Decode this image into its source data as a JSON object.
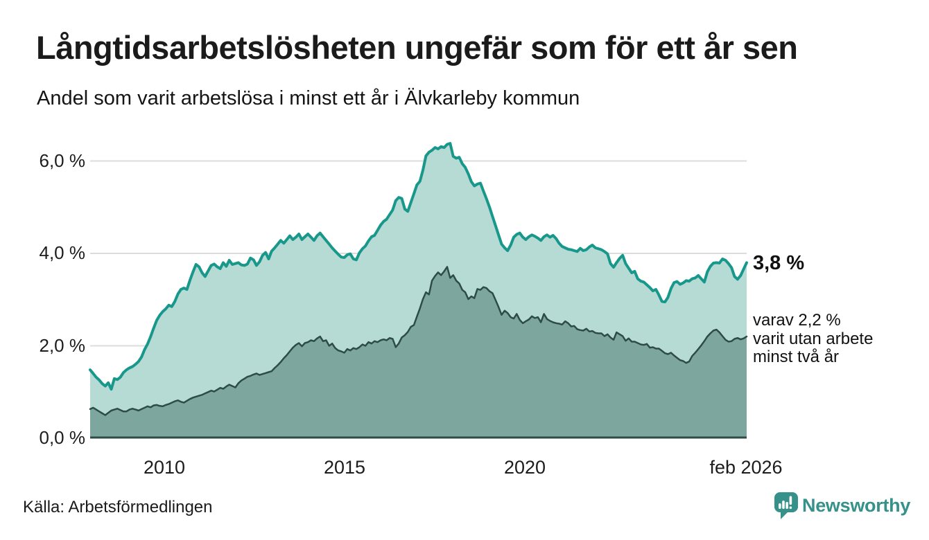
{
  "header": {
    "title": "Långtidsarbetslösheten ungefär som för ett år sen",
    "subtitle": "Andel som varit arbetslösa i minst ett år i Älvkarleby kommun"
  },
  "chart_data": {
    "type": "area",
    "title": "Andel som varit arbetslösa i minst ett år i Älvkarleby kommun",
    "unit": "%",
    "x_start": "2008-01",
    "x_end": "2026-02",
    "grid": true,
    "ylim": [
      0,
      6.6
    ],
    "y_tick_labels": {
      "t0": "0,0 %",
      "t2": "2,0 %",
      "t4": "4,0 %",
      "t6": "6,0 %"
    },
    "y_tick_values": [
      0,
      2,
      4,
      6
    ],
    "x_tick_labels": {
      "y2010": "2010",
      "y2015": "2015",
      "y2020": "2020",
      "y2026": "feb 2026"
    },
    "series": [
      {
        "name": "arbetslösa minst ett år",
        "line_color": "#18988b",
        "fill_color": "#b6dad4",
        "line_width": 4,
        "values": [
          1.48,
          1.4,
          1.32,
          1.26,
          1.18,
          1.13,
          1.2,
          1.06,
          1.29,
          1.27,
          1.32,
          1.42,
          1.48,
          1.52,
          1.55,
          1.6,
          1.66,
          1.76,
          1.92,
          2.04,
          2.2,
          2.38,
          2.55,
          2.66,
          2.74,
          2.8,
          2.88,
          2.85,
          2.96,
          3.12,
          3.22,
          3.25,
          3.22,
          3.42,
          3.6,
          3.76,
          3.71,
          3.58,
          3.5,
          3.62,
          3.74,
          3.77,
          3.71,
          3.67,
          3.8,
          3.72,
          3.85,
          3.76,
          3.78,
          3.8,
          3.75,
          3.74,
          3.77,
          3.9,
          3.86,
          3.74,
          3.82,
          3.96,
          4.02,
          3.88,
          4.05,
          4.12,
          4.2,
          4.28,
          4.22,
          4.3,
          4.38,
          4.3,
          4.35,
          4.42,
          4.3,
          4.36,
          4.42,
          4.35,
          4.28,
          4.38,
          4.44,
          4.36,
          4.28,
          4.2,
          4.12,
          4.05,
          3.98,
          3.92,
          3.91,
          3.97,
          3.99,
          3.88,
          3.86,
          4.01,
          4.1,
          4.16,
          4.27,
          4.36,
          4.39,
          4.5,
          4.61,
          4.69,
          4.74,
          4.84,
          4.94,
          5.14,
          5.21,
          5.19,
          4.96,
          4.91,
          5.1,
          5.29,
          5.48,
          5.56,
          5.8,
          6.11,
          6.19,
          6.23,
          6.29,
          6.26,
          6.31,
          6.29,
          6.36,
          6.38,
          6.1,
          6.06,
          6.08,
          5.94,
          5.86,
          5.72,
          5.55,
          5.46,
          5.5,
          5.52,
          5.35,
          5.18,
          5.0,
          4.8,
          4.6,
          4.4,
          4.2,
          4.12,
          4.06,
          4.18,
          4.35,
          4.41,
          4.44,
          4.35,
          4.3,
          4.36,
          4.4,
          4.37,
          4.33,
          4.28,
          4.36,
          4.4,
          4.35,
          4.39,
          4.32,
          4.22,
          4.15,
          4.12,
          4.09,
          4.08,
          4.06,
          4.04,
          4.11,
          4.06,
          4.08,
          4.14,
          4.18,
          4.12,
          4.1,
          4.08,
          4.04,
          3.99,
          3.78,
          3.7,
          3.8,
          3.89,
          3.96,
          3.78,
          3.68,
          3.58,
          3.61,
          3.45,
          3.4,
          3.38,
          3.32,
          3.26,
          3.19,
          3.22,
          3.1,
          2.96,
          2.95,
          3.05,
          3.24,
          3.37,
          3.39,
          3.33,
          3.36,
          3.41,
          3.4,
          3.45,
          3.47,
          3.52,
          3.45,
          3.38,
          3.6,
          3.72,
          3.79,
          3.8,
          3.79,
          3.88,
          3.85,
          3.78,
          3.69,
          3.5,
          3.44,
          3.52,
          3.66,
          3.8
        ]
      },
      {
        "name": "varav utan arbete minst två år",
        "line_color": "#2d4c47",
        "fill_color": "#7da69e",
        "line_width": 2.5,
        "values": [
          0.63,
          0.66,
          0.62,
          0.58,
          0.54,
          0.5,
          0.55,
          0.6,
          0.62,
          0.64,
          0.61,
          0.58,
          0.58,
          0.62,
          0.64,
          0.62,
          0.6,
          0.63,
          0.66,
          0.69,
          0.67,
          0.71,
          0.72,
          0.7,
          0.69,
          0.72,
          0.74,
          0.77,
          0.8,
          0.82,
          0.79,
          0.77,
          0.81,
          0.85,
          0.88,
          0.9,
          0.92,
          0.94,
          0.97,
          1.0,
          1.03,
          1.01,
          1.05,
          1.09,
          1.07,
          1.12,
          1.16,
          1.13,
          1.1,
          1.19,
          1.25,
          1.29,
          1.33,
          1.35,
          1.38,
          1.4,
          1.37,
          1.39,
          1.41,
          1.43,
          1.45,
          1.52,
          1.58,
          1.65,
          1.73,
          1.8,
          1.88,
          1.96,
          2.02,
          2.06,
          1.99,
          2.06,
          2.08,
          2.12,
          2.1,
          2.16,
          2.2,
          2.1,
          2.12,
          2.0,
          2.05,
          1.95,
          1.9,
          1.88,
          1.85,
          1.93,
          1.9,
          1.95,
          1.93,
          1.97,
          2.03,
          2.0,
          2.08,
          2.05,
          2.1,
          2.08,
          2.12,
          2.14,
          2.12,
          2.17,
          2.15,
          1.97,
          2.05,
          2.18,
          2.23,
          2.3,
          2.41,
          2.45,
          2.63,
          2.81,
          3.01,
          3.16,
          3.11,
          3.41,
          3.51,
          3.59,
          3.53,
          3.61,
          3.71,
          3.47,
          3.53,
          3.41,
          3.35,
          3.21,
          3.16,
          3.01,
          3.07,
          3.03,
          3.23,
          3.21,
          3.27,
          3.25,
          3.18,
          3.14,
          2.99,
          2.84,
          2.67,
          2.76,
          2.71,
          2.62,
          2.59,
          2.69,
          2.56,
          2.49,
          2.53,
          2.57,
          2.64,
          2.6,
          2.62,
          2.51,
          2.69,
          2.58,
          2.54,
          2.51,
          2.49,
          2.48,
          2.46,
          2.53,
          2.49,
          2.42,
          2.43,
          2.36,
          2.34,
          2.33,
          2.37,
          2.31,
          2.32,
          2.28,
          2.27,
          2.27,
          2.21,
          2.25,
          2.18,
          2.13,
          2.29,
          2.25,
          2.21,
          2.11,
          2.16,
          2.09,
          2.09,
          2.06,
          2.03,
          2.02,
          2.04,
          1.96,
          1.97,
          1.94,
          1.94,
          1.89,
          1.84,
          1.82,
          1.85,
          1.79,
          1.74,
          1.69,
          1.67,
          1.63,
          1.66,
          1.78,
          1.85,
          1.93,
          2.01,
          2.1,
          2.2,
          2.27,
          2.33,
          2.35,
          2.29,
          2.21,
          2.13,
          2.09,
          2.1,
          2.15,
          2.17,
          2.14,
          2.16,
          2.2
        ]
      }
    ],
    "end_labels": {
      "primary": "3,8 %",
      "secondary_line1": "varav 2,2 %",
      "secondary_line2": "varit utan arbete",
      "secondary_line3": "minst två år"
    },
    "grid_color": "#dcdcdc",
    "baseline_color": "#2d4c47"
  },
  "footer": {
    "source": "Källa: Arbetsförmedlingen",
    "brand_name": "Newsworthy",
    "brand_color": "#35918a"
  }
}
